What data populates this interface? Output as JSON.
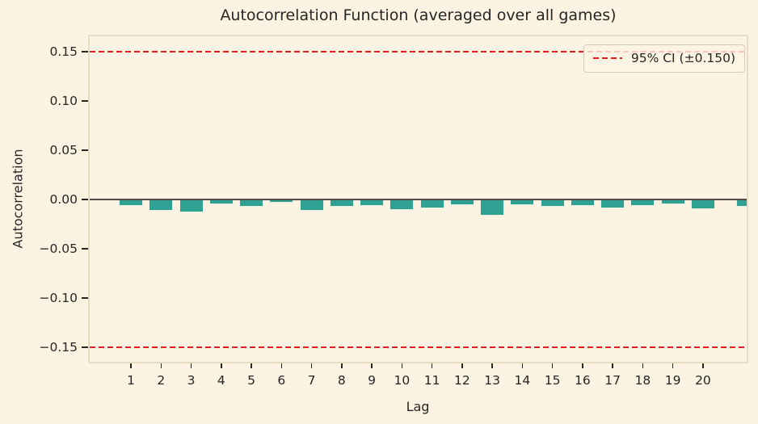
{
  "figure": {
    "title": "Autocorrelation Function (averaged over all games)"
  },
  "chart_data": {
    "type": "bar",
    "title": "Autocorrelation Function (averaged over all games)",
    "xlabel": "Lag",
    "ylabel": "Autocorrelation",
    "categories": [
      1,
      2,
      3,
      4,
      5,
      6,
      7,
      8,
      9,
      10,
      11,
      12,
      13,
      14,
      15,
      16,
      17,
      18,
      19,
      20
    ],
    "values": [
      -0.005,
      -0.01,
      -0.0115,
      -0.0035,
      -0.006,
      -0.0015,
      -0.01,
      -0.006,
      -0.005,
      -0.009,
      -0.007,
      -0.004,
      -0.015,
      -0.004,
      -0.006,
      -0.005,
      -0.007,
      -0.005,
      -0.0035,
      -0.008
    ],
    "extra_partial_bar_at_right_edge": {
      "value": -0.006
    },
    "ylim": [
      -0.166,
      0.166
    ],
    "ytick_values": [
      0.15,
      0.1,
      0.05,
      0.0,
      -0.05,
      -0.1,
      -0.15
    ],
    "ytick_labels": [
      "0.15",
      "0.10",
      "0.05",
      "0.00",
      "−0.05",
      "−0.10",
      "−0.15"
    ],
    "grid": false,
    "ci_lines": {
      "level": "95%",
      "value": 0.15,
      "positions": [
        0.15,
        -0.15
      ],
      "style": "dashed",
      "color": "#e21d1d"
    },
    "legend": {
      "position": "upper right",
      "label": "95% CI (±0.150)",
      "line_color": "#e21d1d",
      "line_style": "dashed"
    },
    "colors": {
      "background": "#fcf3e2",
      "frame": "#e8ddc4",
      "text": "#262626",
      "bar": "#2fa294",
      "bar_edge": "#e9f1e2",
      "zero_line": "#4f4c49",
      "legend_bg": "rgba(253,244,228,0.8)",
      "legend_border": "#d8cdb2"
    }
  }
}
